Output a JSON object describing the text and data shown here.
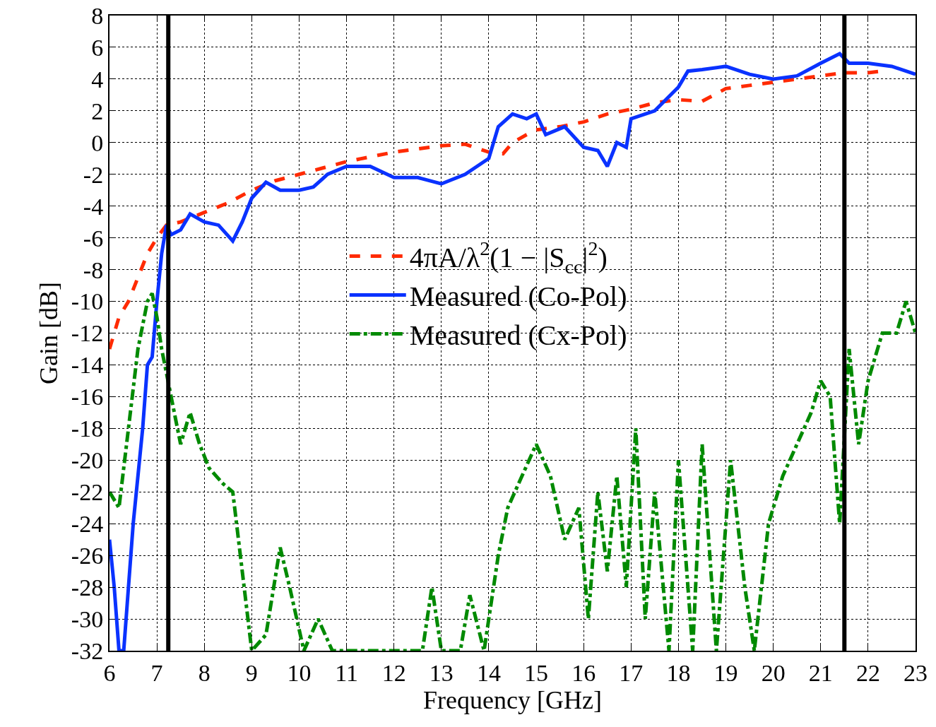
{
  "chart_data": {
    "type": "line",
    "xlabel": "Frequency [GHz]",
    "ylabel": "Gain [dB]",
    "xlim": [
      6,
      23
    ],
    "xticks": [
      6,
      7,
      8,
      9,
      10,
      11,
      12,
      13,
      14,
      15,
      16,
      17,
      18,
      19,
      20,
      21,
      22,
      23
    ],
    "ylim": [
      -32,
      8
    ],
    "yticks": [
      -32,
      -30,
      -28,
      -26,
      -24,
      -22,
      -20,
      -18,
      -16,
      -14,
      -12,
      -10,
      -8,
      -6,
      -4,
      -2,
      0,
      2,
      4,
      6,
      8
    ],
    "grid": true,
    "legend": "center",
    "marker": "none",
    "ref_lines": [
      {
        "axis": "x",
        "value": 7.24,
        "color": "#000000",
        "line_style": "solid"
      },
      {
        "axis": "x",
        "value": 21.5,
        "color": "#000000",
        "line_style": "solid"
      }
    ],
    "series": [
      {
        "name": "4πA/λ$^{2}$(1 − |S$_{cc}$|$^{2}$)",
        "color": "#ff2a00",
        "line_style": "dashed",
        "x": [
          6.0,
          6.1,
          6.2,
          6.4,
          6.6,
          6.8,
          7.0,
          7.2,
          7.5,
          8,
          8.5,
          9,
          9.5,
          10,
          10.5,
          11,
          11.5,
          12,
          12.5,
          13,
          13.5,
          14,
          14.3,
          14.5,
          14.8,
          15,
          15.5,
          16,
          16.5,
          17,
          17.5,
          18,
          18.5,
          19,
          19.5,
          20,
          20.5,
          21,
          21.5,
          22,
          22.3
        ],
        "values": [
          -13,
          -12,
          -11,
          -10,
          -8.5,
          -7,
          -6,
          -5.2,
          -5,
          -4.4,
          -3.8,
          -3,
          -2.4,
          -2,
          -1.6,
          -1.2,
          -0.9,
          -0.6,
          -0.4,
          -0.2,
          -0.1,
          -0.6,
          -0.7,
          0,
          0.5,
          0.8,
          1,
          1.3,
          1.8,
          2.1,
          2.5,
          2.7,
          2.6,
          3.4,
          3.6,
          3.8,
          4,
          4.2,
          4.4,
          4.4,
          4.5
        ]
      },
      {
        "name": "Measured (Co-Pol)",
        "color": "#0a32ff",
        "line_style": "solid",
        "x": [
          6.0,
          6.1,
          6.2,
          6.3,
          6.4,
          6.5,
          6.7,
          6.8,
          6.9,
          7.0,
          7.1,
          7.2,
          7.3,
          7.5,
          7.7,
          8,
          8.3,
          8.6,
          8.8,
          9,
          9.3,
          9.6,
          10,
          10.3,
          10.6,
          11,
          11.5,
          12,
          12.5,
          13,
          13.5,
          14,
          14.2,
          14.5,
          14.8,
          15,
          15.2,
          15.6,
          16,
          16.3,
          16.5,
          16.7,
          16.9,
          17,
          17.5,
          18,
          18.2,
          18.5,
          19,
          19.5,
          20,
          20.5,
          21,
          21.4,
          21.6,
          22,
          22.5,
          23
        ],
        "values": [
          -25,
          -28,
          -32,
          -32,
          -28,
          -24,
          -18,
          -14,
          -13.5,
          -10,
          -7,
          -5.2,
          -5.8,
          -5.5,
          -4.5,
          -5,
          -5.2,
          -6.2,
          -5,
          -3.5,
          -2.5,
          -3,
          -3,
          -2.8,
          -2,
          -1.5,
          -1.5,
          -2.2,
          -2.2,
          -2.6,
          -2,
          -1,
          1,
          1.8,
          1.5,
          1.8,
          0.5,
          1,
          -0.3,
          -0.5,
          -1.5,
          0,
          -0.3,
          1.5,
          2,
          3.5,
          4.5,
          4.6,
          4.8,
          4.3,
          4,
          4.2,
          5,
          5.6,
          5,
          5,
          4.8,
          4.3
        ]
      },
      {
        "name": "Measured (Cx-Pol)",
        "color": "#008a00",
        "line_style": "dashdot",
        "x": [
          6.0,
          6.2,
          6.4,
          6.6,
          6.8,
          6.9,
          7.0,
          7.1,
          7.3,
          7.5,
          7.7,
          7.9,
          8.1,
          8.4,
          8.6,
          8.8,
          9.0,
          9.3,
          9.6,
          9.8,
          10.1,
          10.4,
          10.7,
          11.5,
          12.6,
          12.8,
          13.0,
          13.4,
          13.6,
          13.9,
          14.2,
          14.4,
          14.7,
          15.0,
          15.3,
          15.6,
          15.9,
          16.1,
          16.3,
          16.5,
          16.7,
          16.9,
          17.1,
          17.3,
          17.5,
          17.8,
          18.0,
          18.3,
          18.5,
          18.8,
          19.1,
          19.4,
          19.6,
          19.9,
          20.2,
          20.5,
          20.8,
          21.0,
          21.2,
          21.4,
          21.6,
          21.8,
          22.0,
          22.3,
          22.6,
          22.8,
          23
        ],
        "values": [
          -22,
          -23,
          -18,
          -13,
          -10,
          -9.5,
          -11,
          -13,
          -16,
          -19,
          -17,
          -19,
          -20.5,
          -21.5,
          -22,
          -27,
          -32,
          -31,
          -25.5,
          -28,
          -32,
          -30,
          -32,
          -32,
          -32,
          -28,
          -32,
          -32,
          -28.5,
          -32,
          -26,
          -23,
          -21,
          -19,
          -21,
          -25,
          -23,
          -30,
          -22,
          -27,
          -21,
          -28,
          -18,
          -30,
          -22,
          -32,
          -20,
          -32,
          -19,
          -32,
          -20,
          -28,
          -32,
          -24,
          -21,
          -19,
          -17,
          -15,
          -16,
          -24,
          -13,
          -19,
          -15,
          -12,
          -12,
          -10,
          -12
        ]
      }
    ]
  }
}
